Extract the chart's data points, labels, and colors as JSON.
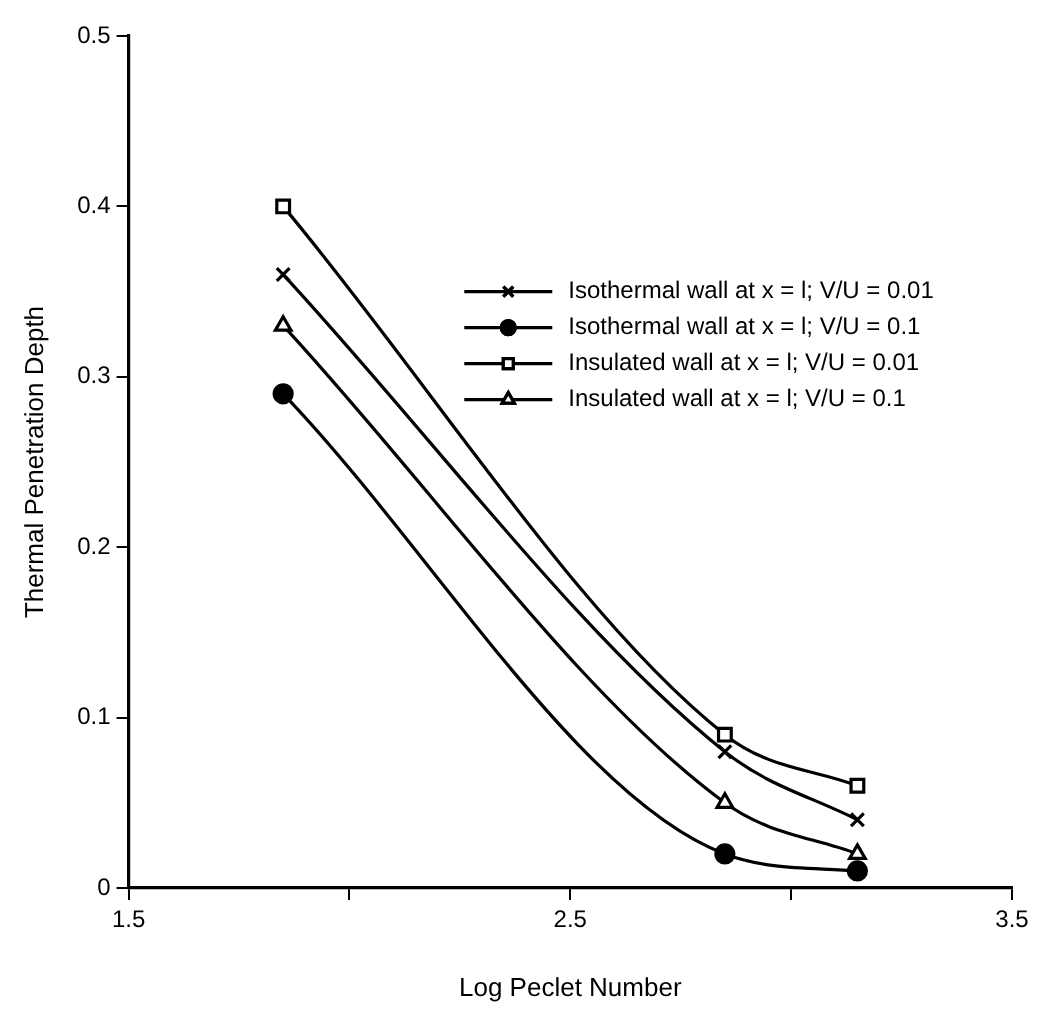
{
  "chart_data": {
    "type": "line",
    "xlabel": "Log Peclet Number",
    "ylabel": "Thermal Penetration Depth",
    "x": [
      1.85,
      2.85,
      3.15
    ],
    "xlim": [
      1.5,
      3.5
    ],
    "xticks": [
      1.5,
      {
        "value": 2,
        "label": null
      },
      2.5,
      {
        "value": 3,
        "label": null
      },
      3.5
    ],
    "ylim": [
      0,
      0.5
    ],
    "yticks": [
      0,
      0.1,
      0.2,
      0.3,
      0.4,
      0.5
    ],
    "grid": false,
    "legend": "right",
    "line_style": "solid",
    "series": [
      {
        "name": "Isothermal wall at x = l; V/U = 0.01",
        "color": "#000000",
        "marker": "cross",
        "values": [
          0.36,
          0.08,
          0.04
        ]
      },
      {
        "name": "Isothermal wall at x = l; V/U = 0.1",
        "color": "#000000",
        "marker": "circle",
        "values": [
          0.29,
          0.02,
          0.01
        ]
      },
      {
        "name": "Insulated wall at x = l; V/U = 0.01",
        "color": "#000000",
        "marker": "square",
        "values": [
          0.4,
          0.09,
          0.06
        ]
      },
      {
        "name": "Insulated wall at x = l; V/U = 0.1",
        "color": "#000000",
        "marker": "triangle",
        "values": [
          0.33,
          0.05,
          0.02
        ]
      }
    ]
  }
}
